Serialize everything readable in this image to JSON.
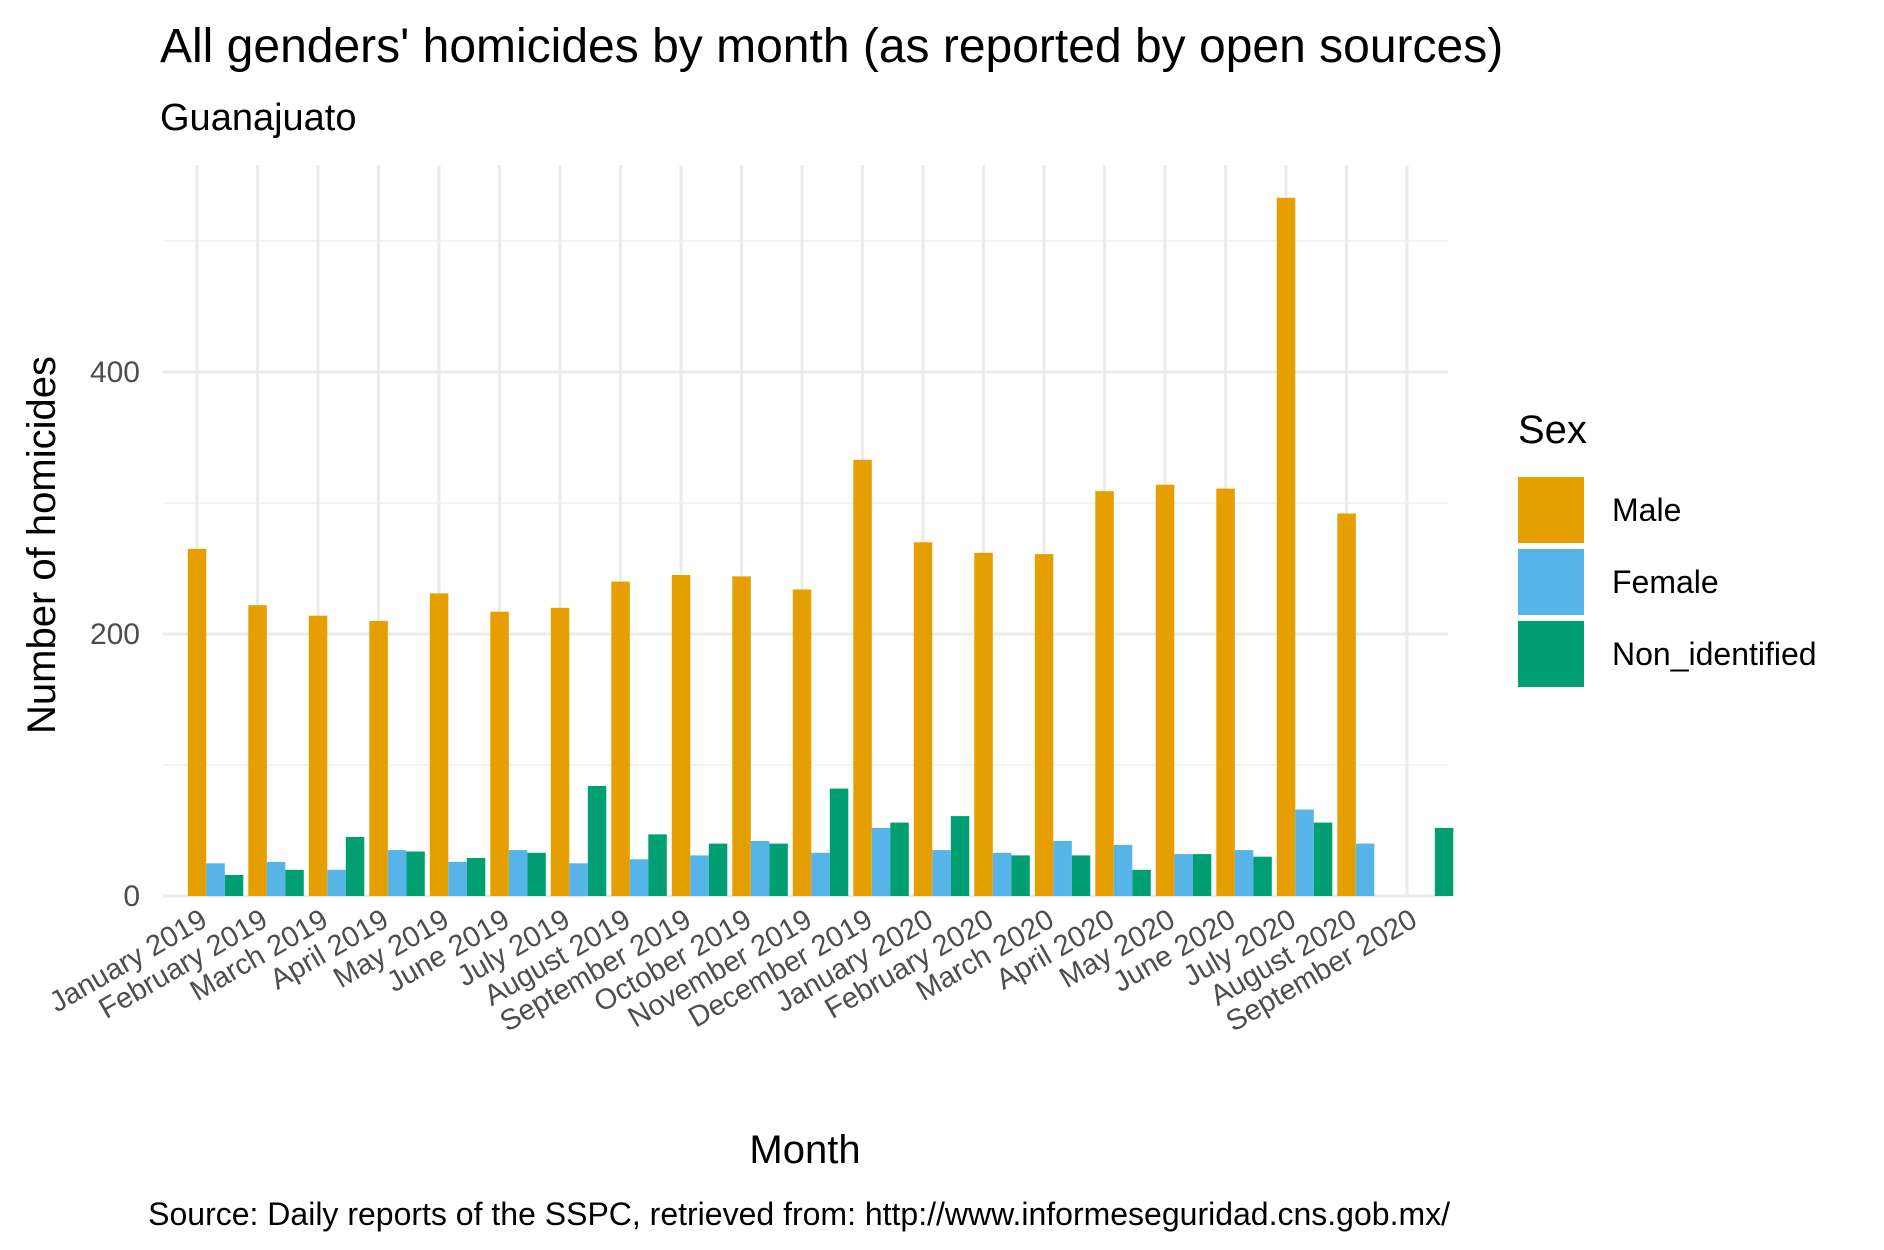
{
  "chart_data": {
    "type": "bar",
    "title": "All genders' homicides by month (as reported by open sources)",
    "subtitle": "Guanajuato",
    "xlabel": "Month",
    "ylabel": "Number of homicides",
    "caption": "Source: Daily reports of the SSPC, retrieved from: http://www.informeseguridad.cns.gob.mx/",
    "ylim": [
      0,
      550
    ],
    "yticks": [
      0,
      200,
      400
    ],
    "grid": true,
    "legend": {
      "title": "Sex",
      "position": "right"
    },
    "categories": [
      "January 2019",
      "February 2019",
      "March 2019",
      "April 2019",
      "May 2019",
      "June 2019",
      "July 2019",
      "August 2019",
      "September 2019",
      "October 2019",
      "November 2019",
      "December 2019",
      "January 2020",
      "February 2020",
      "March 2020",
      "April 2020",
      "May 2020",
      "June 2020",
      "July 2020",
      "August 2020",
      "September 2020"
    ],
    "series": [
      {
        "name": "Male",
        "color": "#E69F00",
        "values": [
          265,
          222,
          214,
          210,
          231,
          217,
          220,
          240,
          245,
          244,
          234,
          333,
          270,
          262,
          261,
          309,
          314,
          311,
          533,
          292,
          null
        ]
      },
      {
        "name": "Female",
        "color": "#56B4E9",
        "values": [
          25,
          26,
          20,
          35,
          26,
          35,
          25,
          28,
          31,
          42,
          33,
          52,
          35,
          33,
          42,
          39,
          32,
          35,
          66,
          40,
          null
        ]
      },
      {
        "name": "Non_identified",
        "color": "#009E73",
        "values": [
          16,
          20,
          45,
          34,
          29,
          33,
          84,
          47,
          40,
          40,
          82,
          56,
          61,
          31,
          31,
          20,
          32,
          30,
          56,
          null,
          52
        ]
      }
    ]
  }
}
